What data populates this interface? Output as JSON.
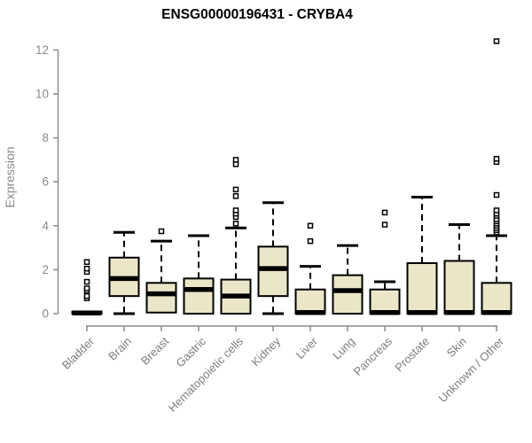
{
  "page": {
    "background": "#ffffff"
  },
  "chart_data": {
    "type": "boxplot",
    "title": "ENSG00000196431 - CRYBA4",
    "ylabel": "Expression",
    "xlabel": "",
    "ylim": [
      0,
      12.5
    ],
    "yticks": [
      0,
      2,
      4,
      6,
      8,
      10,
      12
    ],
    "grid": false,
    "legend": "none",
    "colors": {
      "box_fill": "#ece6c9",
      "box_stroke": "#000000",
      "median": "#000000",
      "whisker": "#000000",
      "axis": "#8a8a8a",
      "tick_label": "#8a8a8a",
      "category_label": "#7d7d7d",
      "outlier_fill": "#ffffff",
      "outlier_stroke": "#000000"
    },
    "categories": [
      "Bladder",
      "Brain",
      "Breast",
      "Gastric",
      "Hematopoietic cells",
      "Kidney",
      "Liver",
      "Lung",
      "Pancreas",
      "Prostate",
      "Skin",
      "Unknown / Other"
    ],
    "series": [
      {
        "category": "Bladder",
        "low": 0,
        "q1": 0,
        "median": 0.03,
        "q3": 0.1,
        "high": 0.1,
        "outliers": [
          0.7,
          0.8,
          1.05,
          1.15,
          1.45,
          1.9,
          2.05,
          2.35
        ]
      },
      {
        "category": "Brain",
        "low": 0,
        "q1": 0.8,
        "median": 1.6,
        "q3": 2.55,
        "high": 3.7,
        "outliers": []
      },
      {
        "category": "Breast",
        "low": 0.05,
        "q1": 0.05,
        "median": 0.9,
        "q3": 1.4,
        "high": 3.3,
        "outliers": [
          3.75
        ]
      },
      {
        "category": "Gastric",
        "low": 0,
        "q1": 0,
        "median": 1.1,
        "q3": 1.6,
        "high": 3.55,
        "outliers": []
      },
      {
        "category": "Hematopoietic cells",
        "low": 0,
        "q1": 0,
        "median": 0.8,
        "q3": 1.55,
        "high": 3.9,
        "outliers": [
          4.1,
          4.4,
          4.55,
          4.7,
          5.35,
          5.65,
          6.8,
          7.0
        ]
      },
      {
        "category": "Kidney",
        "low": 0,
        "q1": 0.8,
        "median": 2.05,
        "q3": 3.05,
        "high": 5.05,
        "outliers": []
      },
      {
        "category": "Liver",
        "low": 0,
        "q1": 0,
        "median": 0.05,
        "q3": 1.1,
        "high": 2.15,
        "outliers": [
          3.3,
          4.0
        ]
      },
      {
        "category": "Lung",
        "low": 0,
        "q1": 0,
        "median": 1.05,
        "q3": 1.75,
        "high": 3.1,
        "outliers": []
      },
      {
        "category": "Pancreas",
        "low": 0,
        "q1": 0,
        "median": 0.05,
        "q3": 1.1,
        "high": 1.45,
        "outliers": [
          4.05,
          4.6
        ]
      },
      {
        "category": "Prostate",
        "low": 0,
        "q1": 0,
        "median": 0.05,
        "q3": 2.3,
        "high": 5.3,
        "outliers": []
      },
      {
        "category": "Skin",
        "low": 0,
        "q1": 0,
        "median": 0.05,
        "q3": 2.4,
        "high": 4.05,
        "outliers": []
      },
      {
        "category": "Unknown / Other",
        "low": 0,
        "q1": 0,
        "median": 0.05,
        "q3": 1.4,
        "high": 3.55,
        "outliers": [
          3.7,
          3.8,
          3.9,
          4.0,
          4.1,
          4.2,
          4.3,
          4.45,
          4.55,
          4.7,
          5.4,
          6.9,
          7.05,
          12.4
        ]
      }
    ]
  }
}
